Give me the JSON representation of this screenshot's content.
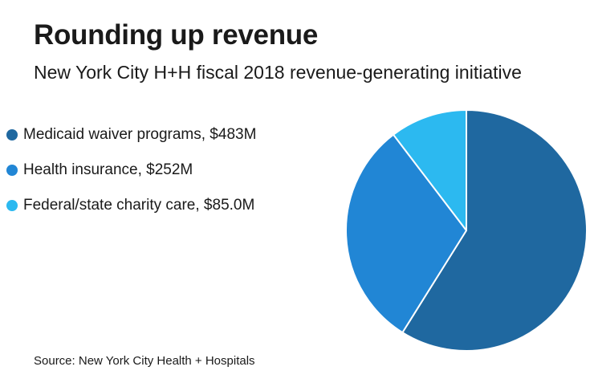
{
  "chart_data": {
    "type": "pie",
    "title": "Rounding up revenue",
    "subtitle": "New York City H+H fiscal 2018 revenue-generating initiative",
    "slices": [
      {
        "label": "Medicaid waiver programs, $483M",
        "value": 483,
        "color": "#1f68a0"
      },
      {
        "label": "Health insurance, $252M",
        "value": 252,
        "color": "#2186d5"
      },
      {
        "label": "Federal/state charity care, $85.0M",
        "value": 85.0,
        "color": "#2cb9f0"
      }
    ],
    "legend_position": "left",
    "source": "Source: New York City Health + Hospitals"
  }
}
